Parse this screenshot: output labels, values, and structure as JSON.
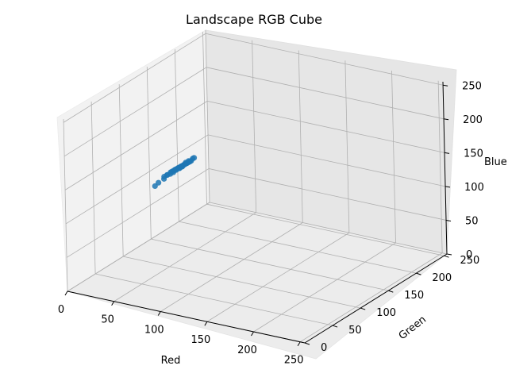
{
  "chart_data": {
    "type": "scatter",
    "projection": "3d",
    "title": "Landscape RGB Cube",
    "xlabel": "Red",
    "ylabel": "Green",
    "zlabel": "Blue",
    "xlim": [
      0,
      255
    ],
    "ylim": [
      0,
      255
    ],
    "zlim": [
      0,
      255
    ],
    "xticks": [
      0,
      50,
      100,
      150,
      200,
      250
    ],
    "yticks": [
      0,
      50,
      100,
      150,
      200,
      250
    ],
    "zticks": [
      0,
      50,
      100,
      150,
      200,
      250
    ],
    "grid": true,
    "color": "#1f77b4",
    "series": [
      {
        "points": [
          [
            38,
            125,
            123
          ],
          [
            39,
            126,
            124
          ],
          [
            40,
            127,
            125
          ],
          [
            41,
            128,
            126
          ],
          [
            42,
            129,
            127
          ],
          [
            43,
            130,
            128
          ],
          [
            44,
            131,
            129
          ],
          [
            45,
            132,
            130
          ],
          [
            46,
            133,
            131
          ],
          [
            47,
            134,
            132
          ],
          [
            48,
            135,
            133
          ],
          [
            49,
            136,
            134
          ],
          [
            50,
            137,
            135
          ],
          [
            51,
            138,
            136
          ],
          [
            52,
            139,
            137
          ],
          [
            40,
            130,
            125
          ],
          [
            42,
            132,
            127
          ],
          [
            44,
            134,
            129
          ],
          [
            46,
            136,
            131
          ],
          [
            48,
            138,
            133
          ],
          [
            50,
            140,
            135
          ],
          [
            36,
            122,
            120
          ],
          [
            34,
            120,
            118
          ],
          [
            30,
            110,
            108
          ],
          [
            32,
            113,
            112
          ],
          [
            43,
            127,
            127
          ],
          [
            45,
            129,
            129
          ],
          [
            47,
            131,
            131
          ],
          [
            41,
            125,
            124
          ],
          [
            39,
            123,
            122
          ],
          [
            49,
            134,
            136
          ],
          [
            51,
            136,
            138
          ],
          [
            53,
            140,
            140
          ],
          [
            54,
            141,
            141
          ],
          [
            44,
            136,
            128
          ],
          [
            46,
            128,
            130
          ],
          [
            48,
            130,
            133
          ],
          [
            42,
            135,
            126
          ],
          [
            37,
            121,
            121
          ],
          [
            35,
            118,
            116
          ]
        ]
      }
    ]
  }
}
